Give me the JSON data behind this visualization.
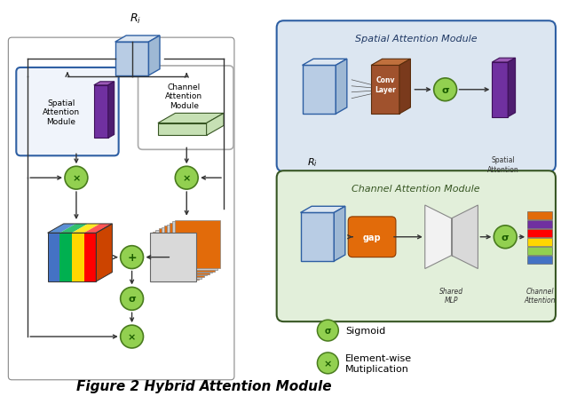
{
  "title": "Figure 2 Hybrid Attention Module",
  "background_color": "#ffffff",
  "fig_width": 6.32,
  "fig_height": 4.56,
  "sigmoid_color": "#92d050",
  "sigmoid_edge": "#4a7c1f",
  "legend_sigmoid_text": "Sigmoid",
  "legend_multiply_text": "Element-wise\nMutiplication"
}
